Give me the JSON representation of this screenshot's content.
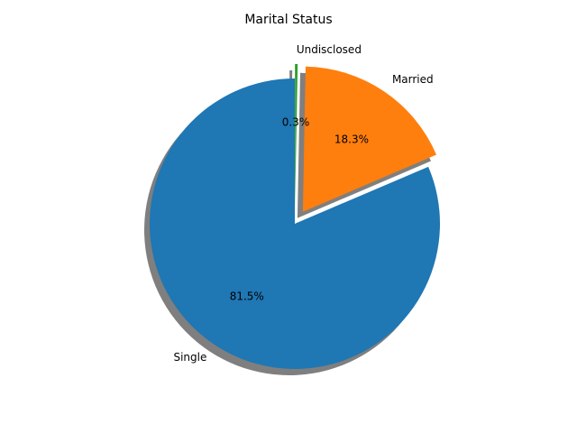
{
  "chart_data": {
    "type": "pie",
    "title": "Marital Status",
    "slices": [
      {
        "label": "Single",
        "value": 81.5,
        "pct_label": "81.5%",
        "color": "#1f77b4",
        "exploded": false
      },
      {
        "label": "Married",
        "value": 18.3,
        "pct_label": "18.3%",
        "color": "#ff7f0e",
        "exploded": true
      },
      {
        "label": "Undisclosed",
        "value": 0.3,
        "pct_label": "0.3%",
        "color": "#2ca02c",
        "exploded": true
      }
    ],
    "start_angle_deg": 90,
    "direction": "counterclockwise",
    "shadow": true,
    "legend": "none"
  }
}
